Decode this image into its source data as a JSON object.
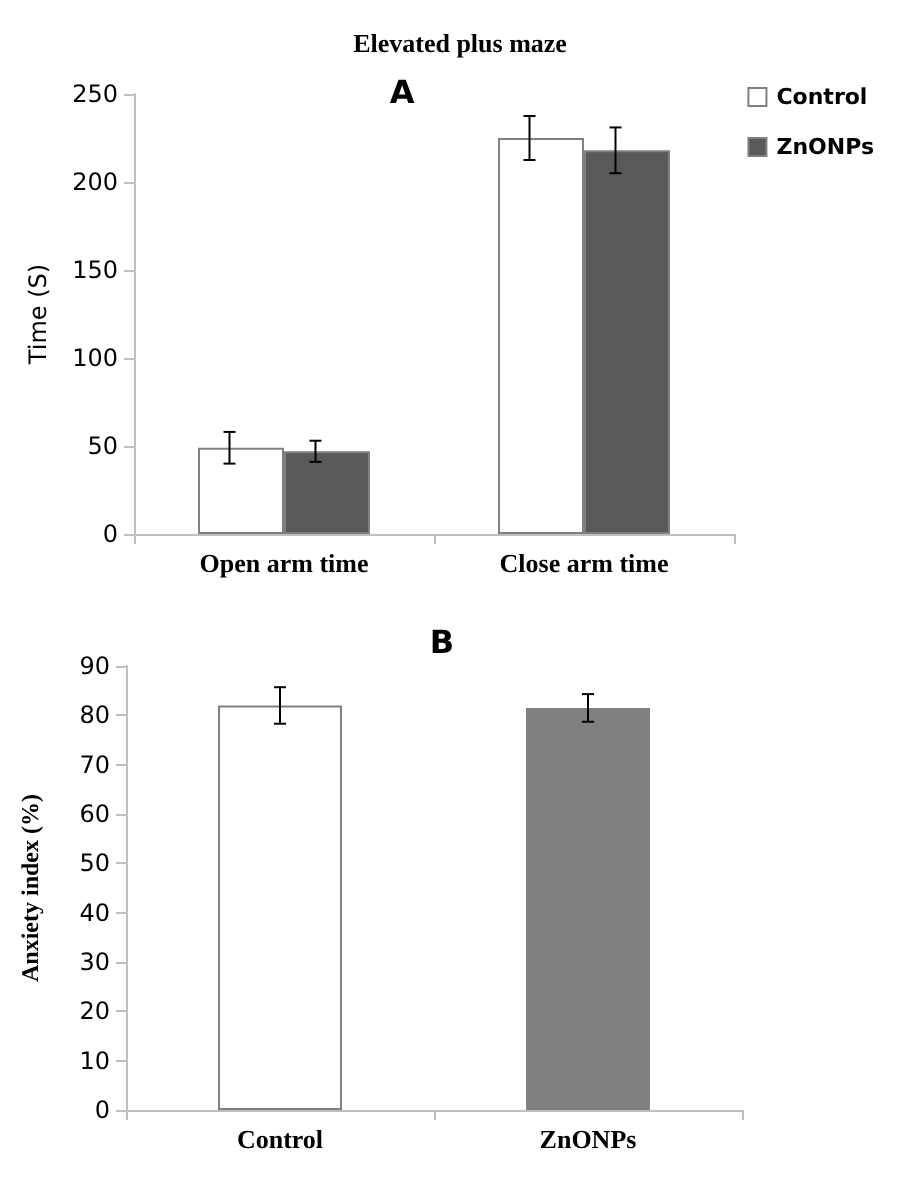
{
  "chart_data": [
    {
      "type": "bar",
      "title": "Elevated plus maze",
      "subtitle": "A",
      "ylabel": "Time (S)",
      "categories": [
        "Open arm time",
        "Close arm time"
      ],
      "legend": "top right",
      "series": [
        {
          "name": "Control",
          "color": "#ffffff",
          "values": [
            49,
            225
          ],
          "errors": [
            9,
            12.5
          ]
        },
        {
          "name": "ZnONPs",
          "color": "#595959",
          "values": [
            47,
            218
          ],
          "errors": [
            6,
            13
          ]
        }
      ],
      "ylim": [
        0,
        250
      ],
      "yticks": [
        0,
        50,
        100,
        150,
        200,
        250
      ],
      "grid": false
    },
    {
      "type": "bar",
      "title": "B",
      "ylabel": "Anxiety index (%)",
      "categories": [
        "Control",
        "ZnONPs"
      ],
      "values": [
        82,
        81.5
      ],
      "errors": [
        3.7,
        2.8
      ],
      "colors": [
        "#ffffff",
        "#808080"
      ],
      "ylim": [
        0,
        90
      ],
      "yticks": [
        0,
        10,
        20,
        30,
        40,
        50,
        60,
        70,
        80,
        90
      ],
      "grid": false
    }
  ]
}
